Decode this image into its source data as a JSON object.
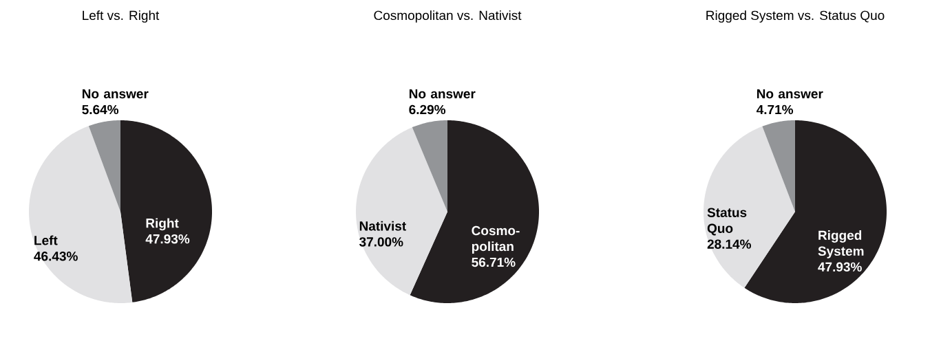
{
  "chart_data": [
    {
      "type": "pie",
      "title": "Left vs. Right",
      "categories": [
        "Right",
        "Left",
        "No answer"
      ],
      "values": [
        47.93,
        46.43,
        5.64
      ],
      "colors": [
        "#231f20",
        "#e1e1e3",
        "#939598"
      ],
      "value_labels": [
        "47.93%",
        "46.43%",
        "5.64%"
      ]
    },
    {
      "type": "pie",
      "title": "Cosmopolitan vs. Nativist",
      "categories": [
        "Cosmo-politan",
        "Nativist",
        "No answer"
      ],
      "values": [
        56.71,
        37.0,
        6.29
      ],
      "colors": [
        "#231f20",
        "#e1e1e3",
        "#939598"
      ],
      "value_labels": [
        "56.71%",
        "37.00%",
        "6.29%"
      ]
    },
    {
      "type": "pie",
      "title": "Rigged System vs. Status Quo",
      "categories": [
        "Rigged System",
        "Status Quo",
        "No answer"
      ],
      "values": [
        47.93,
        28.14,
        4.71
      ],
      "colors": [
        "#231f20",
        "#e1e1e3",
        "#939598"
      ],
      "value_labels": [
        "47.93%",
        "28.14%",
        "4.71%"
      ]
    }
  ]
}
